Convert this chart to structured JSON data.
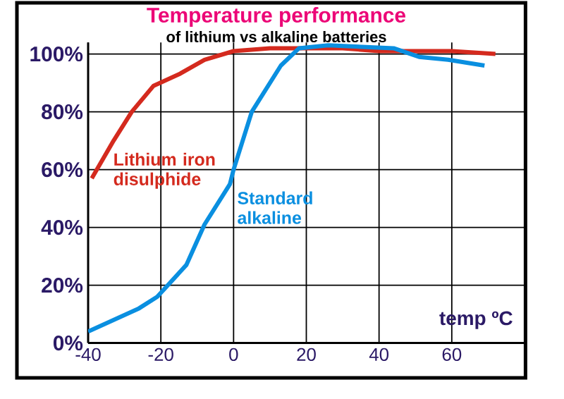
{
  "chart_data": {
    "type": "line",
    "title": "Temperature performance",
    "subtitle": "of lithium vs alkaline batteries",
    "xlabel": "temp ºC",
    "xlim": [
      -40,
      80
    ],
    "ylim": [
      0,
      104
    ],
    "xticks": [
      -40,
      -20,
      0,
      20,
      40,
      60
    ],
    "yticks": [
      {
        "value": 0,
        "label": "0%"
      },
      {
        "value": 20,
        "label": "20%"
      },
      {
        "value": 40,
        "label": "40%"
      },
      {
        "value": 60,
        "label": "60%"
      },
      {
        "value": 80,
        "label": "80%"
      },
      {
        "value": 100,
        "label": "100%"
      }
    ],
    "grid": true,
    "legend": false,
    "marker": "none",
    "line_style": "solid",
    "series": [
      {
        "name": "Lithium iron disulphide",
        "color": "#d42a1e",
        "x": [
          -39,
          -33,
          -28,
          -22,
          -15,
          -8,
          0,
          10,
          20,
          30,
          40,
          50,
          60,
          72
        ],
        "values": [
          57,
          70,
          80,
          89,
          93,
          98,
          101,
          102,
          102,
          102,
          101,
          101,
          101,
          100
        ]
      },
      {
        "name": "Standard alkaline",
        "color": "#0a8fe0",
        "x": [
          -40,
          -26,
          -21,
          -13,
          -8,
          -1,
          0,
          5,
          13,
          18,
          26,
          44,
          51,
          59,
          69
        ],
        "values": [
          4,
          12,
          16,
          27,
          41,
          55,
          60,
          80,
          96,
          102,
          103,
          102,
          99,
          98,
          96
        ]
      }
    ]
  }
}
